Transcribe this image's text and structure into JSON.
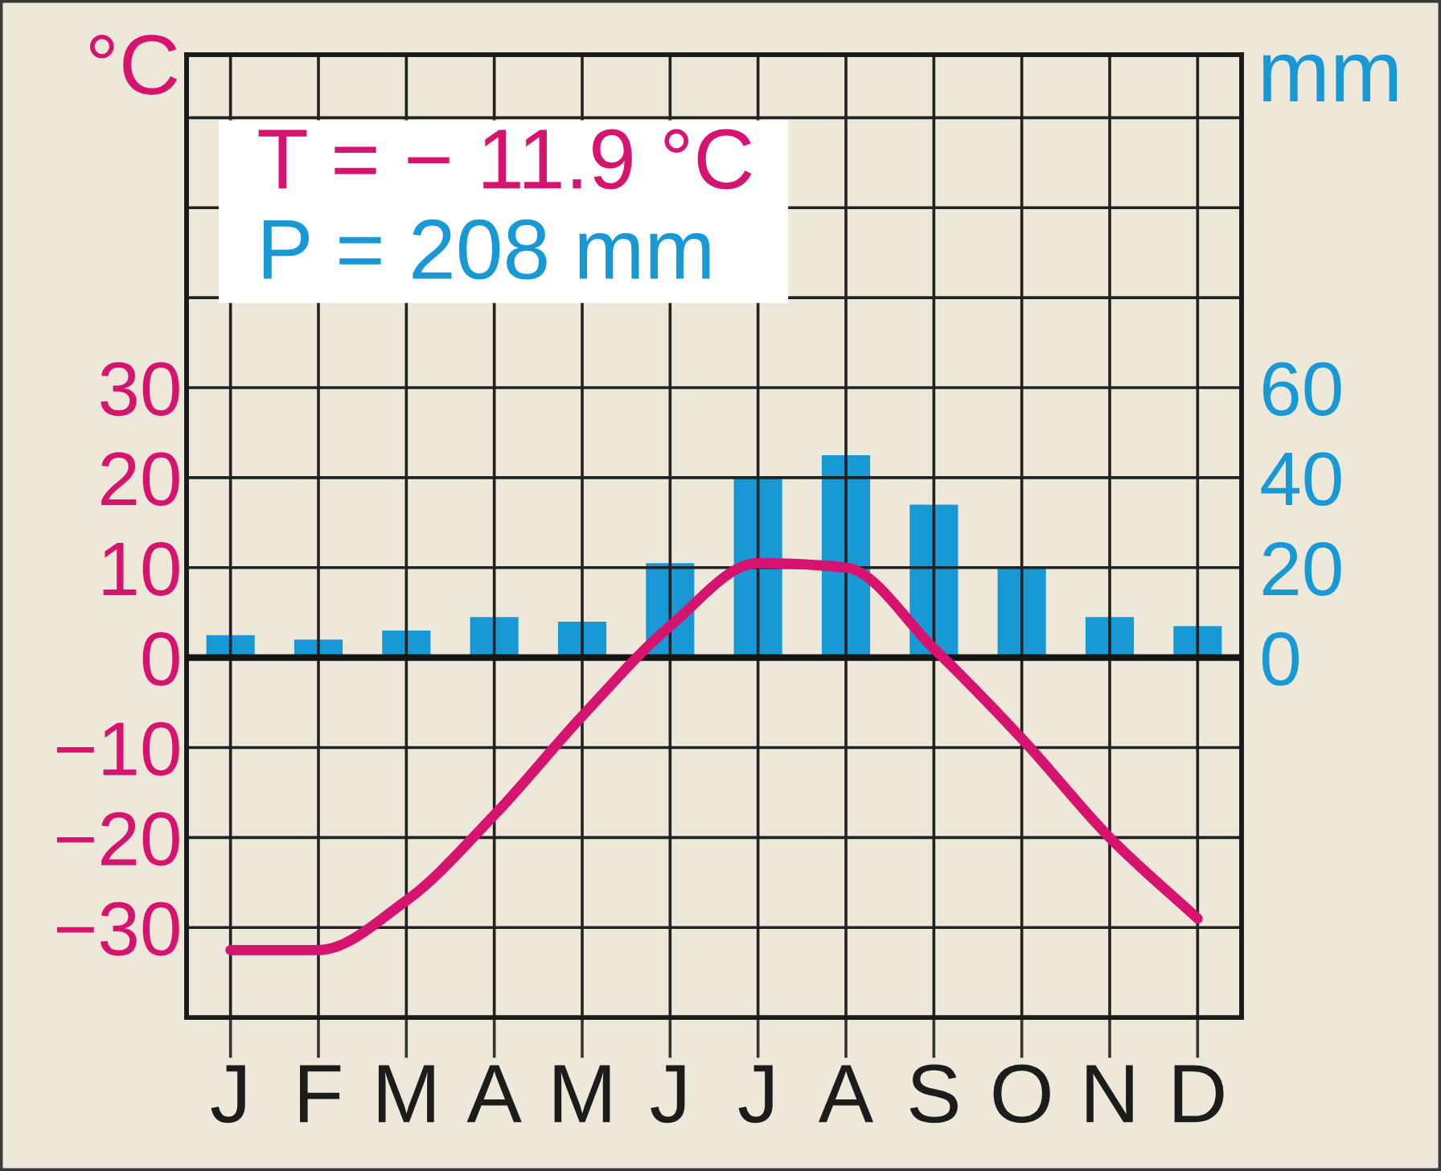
{
  "chart_data": {
    "type": "bar",
    "categories": [
      "J",
      "F",
      "M",
      "A",
      "M",
      "J",
      "J",
      "A",
      "S",
      "O",
      "N",
      "D"
    ],
    "ylabel": "°C",
    "y2label": "mm",
    "ylim": [
      -40,
      67
    ],
    "yticks": [
      {
        "value": -30,
        "label": "−30"
      },
      {
        "value": -20,
        "label": "−20"
      },
      {
        "value": -10,
        "label": "−10"
      },
      0,
      10,
      20,
      30,
      {
        "value": 40,
        "label": null
      },
      {
        "value": 50,
        "label": null
      },
      {
        "value": 60,
        "label": null
      }
    ],
    "y2lim": [
      -80,
      134
    ],
    "y2ticks": [
      0,
      20,
      40,
      60
    ],
    "grid": true,
    "series": [
      {
        "type": "line",
        "color": "#d6136f",
        "values": [
          -32.5,
          -32.5,
          -27,
          -17.5,
          -6.5,
          3.5,
          10.5,
          10,
          1,
          -9,
          -20,
          -29
        ]
      },
      {
        "axis": "y2",
        "color": "#1898d4",
        "values": [
          5,
          4,
          6,
          9,
          8,
          21,
          40,
          45,
          34,
          20,
          9,
          7
        ]
      }
    ],
    "ref_lines": [
      {
        "axis": "y",
        "value": 0,
        "color": "#151515"
      }
    ],
    "annotations": [
      "T = − 11.9 °C",
      "P = 208 mm"
    ]
  }
}
